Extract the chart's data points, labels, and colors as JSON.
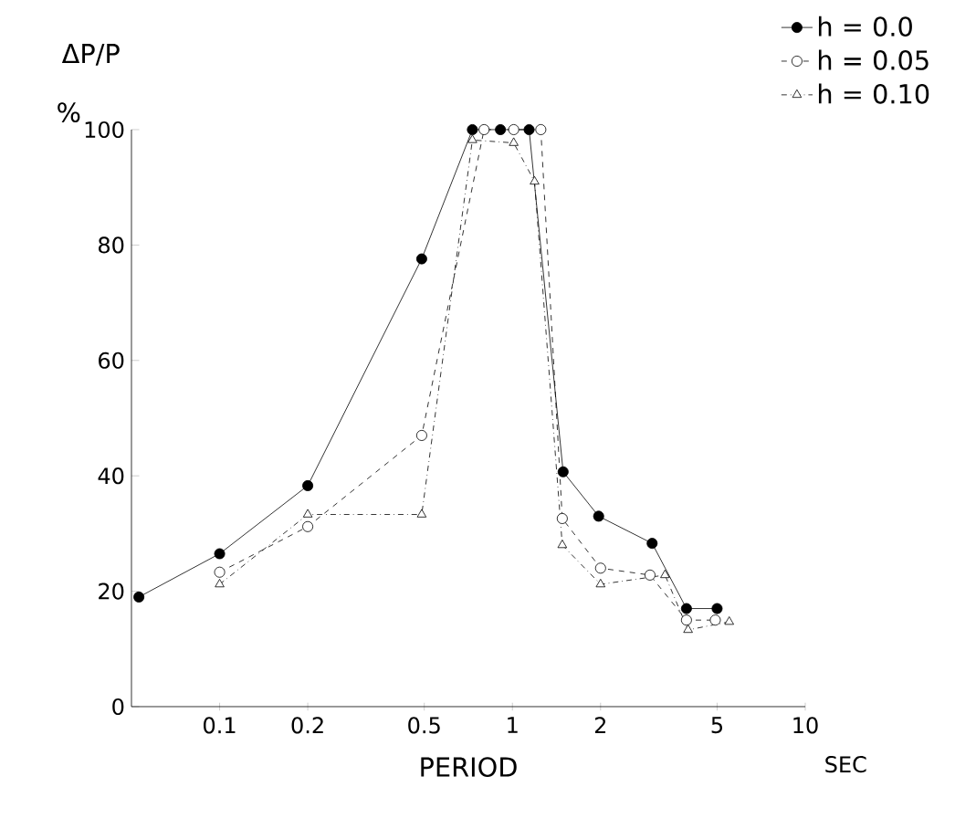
{
  "chart_data": {
    "type": "line",
    "xlabel": "PERIOD",
    "ylabel": "ΔP/P",
    "annotations": [
      "%",
      "SEC"
    ],
    "log": "x",
    "xlim": [
      0.05,
      10
    ],
    "ylim": [
      0,
      100
    ],
    "xticks": [
      0.1,
      0.2,
      0.5,
      1,
      2,
      5,
      10
    ],
    "yticks": [
      0,
      20,
      40,
      60,
      80,
      100
    ],
    "grid": false,
    "legend": "top right",
    "series": [
      {
        "name": "h = 0.0",
        "color": "#000000",
        "marker": "circle",
        "line_style": "solid",
        "x": [
          0.053,
          0.1,
          0.2,
          0.49,
          0.73,
          0.91,
          1.14,
          1.49,
          1.97,
          3.0,
          3.93,
          5.0
        ],
        "values": [
          19,
          26.5,
          38.3,
          77.6,
          100,
          100,
          100,
          40.7,
          33,
          28.3,
          17,
          17
        ]
      },
      {
        "name": "h = 0.05",
        "color": "#000000",
        "marker": "circle",
        "line_style": "dashed",
        "x": [
          0.1,
          0.2,
          0.49,
          0.8,
          1.01,
          1.25,
          1.48,
          2.0,
          2.95,
          3.93,
          4.93
        ],
        "values": [
          23.3,
          31.2,
          47,
          100,
          100,
          100,
          32.6,
          24,
          22.8,
          15,
          15
        ]
      },
      {
        "name": "h = 0.10",
        "color": "#000000",
        "marker": "triangle",
        "line_style": "dashdot",
        "x": [
          0.1,
          0.2,
          0.49,
          0.73,
          1.01,
          1.19,
          1.48,
          2.0,
          3.32,
          3.98,
          5.5
        ],
        "values": [
          21.2,
          33.3,
          33.3,
          98.2,
          97.7,
          91,
          28,
          21.2,
          22.8,
          13.3,
          14.7
        ]
      }
    ]
  }
}
